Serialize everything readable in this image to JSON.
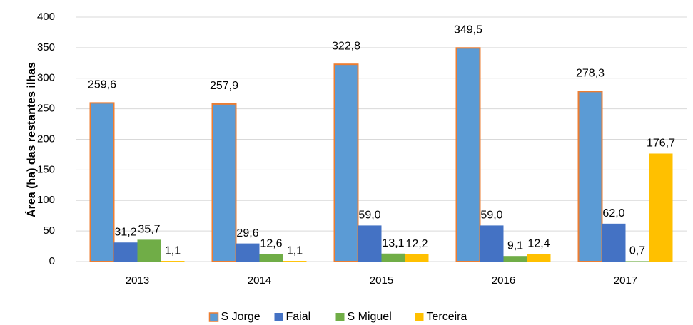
{
  "chart_data": {
    "type": "bar",
    "y_label": "Área (ha) das restantes ilhas",
    "categories": [
      "2013",
      "2014",
      "2015",
      "2016",
      "2017"
    ],
    "series": [
      {
        "name": "S Jorge",
        "color": "#5b9bd5",
        "edge_color": "#ed7d31",
        "values": [
          259.6,
          257.9,
          322.8,
          349.5,
          278.3
        ],
        "value_labels": [
          "259,6",
          "257,9",
          "322,8",
          "349,5",
          "278,3"
        ]
      },
      {
        "name": "Faial",
        "color": "#4472c4",
        "values": [
          31.2,
          29.6,
          59.0,
          59.0,
          62.0
        ],
        "value_labels": [
          "31,2",
          "29,6",
          "59,0",
          "59,0",
          "62,0"
        ]
      },
      {
        "name": "S Miguel",
        "color": "#70ad47",
        "values": [
          35.7,
          12.6,
          13.1,
          9.1,
          0.7
        ],
        "value_labels": [
          "35,7",
          "12,6",
          "13,1",
          "9,1",
          "0,7"
        ]
      },
      {
        "name": "Terceira",
        "color": "#ffc000",
        "values": [
          1.1,
          1.1,
          12.2,
          12.4,
          176.7
        ],
        "value_labels": [
          "1,1",
          "1,1",
          "12,2",
          "12,4",
          "176,7"
        ]
      }
    ],
    "ylim": [
      0,
      400
    ],
    "yticks": [
      0,
      50,
      100,
      150,
      200,
      250,
      300,
      350,
      400
    ],
    "grid": true,
    "legend": "bottom"
  }
}
